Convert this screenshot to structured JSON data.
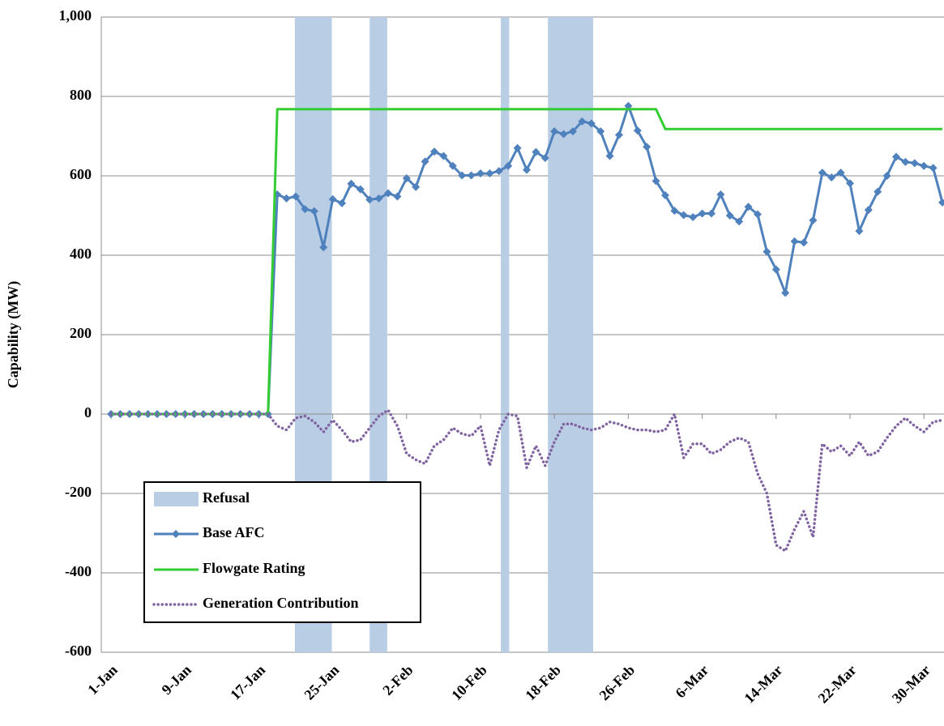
{
  "chart_data": {
    "type": "line",
    "ylabel": "Capability (MW)",
    "categories": [
      "1-Jan",
      null,
      null,
      null,
      null,
      null,
      null,
      null,
      "9-Jan",
      null,
      null,
      null,
      null,
      null,
      null,
      null,
      "17-Jan",
      null,
      null,
      null,
      null,
      null,
      null,
      null,
      "25-Jan",
      null,
      null,
      null,
      null,
      null,
      null,
      null,
      "2-Feb",
      null,
      null,
      null,
      null,
      null,
      null,
      null,
      "10-Feb",
      null,
      null,
      null,
      null,
      null,
      null,
      null,
      "18-Feb",
      null,
      null,
      null,
      null,
      null,
      null,
      null,
      "26-Feb",
      null,
      null,
      null,
      null,
      null,
      null,
      null,
      "6-Mar",
      null,
      null,
      null,
      null,
      null,
      null,
      null,
      "14-Mar",
      null,
      null,
      null,
      null,
      null,
      null,
      null,
      "22-Mar",
      null,
      null,
      null,
      null,
      null,
      null,
      null,
      "30-Mar",
      null,
      null
    ],
    "ylim": [
      -600,
      1000
    ],
    "yticks": [
      -600,
      -400,
      -200,
      0,
      200,
      400,
      600,
      800,
      {
        "value": 1000,
        "label": "1,000"
      }
    ],
    "grid": true,
    "legend": "lower-left",
    "bands": {
      "name": "Refusal",
      "color": "#b9cde5",
      "spans": [
        [
          19.9,
          23.9
        ],
        [
          28.0,
          29.9
        ],
        [
          42.2,
          43.1
        ],
        [
          47.3,
          52.2
        ]
      ]
    },
    "series": [
      {
        "name": "Base AFC",
        "color": "#4f81bd",
        "style": "marker",
        "values": [
          0,
          0,
          0,
          0,
          0,
          0,
          0,
          0,
          0,
          0,
          0,
          0,
          0,
          0,
          0,
          0,
          0,
          0,
          553,
          543,
          548,
          516,
          511,
          420,
          541,
          531,
          580,
          566,
          540,
          543,
          556,
          548,
          594,
          572,
          636,
          661,
          650,
          625,
          601,
          601,
          606,
          606,
          612,
          625,
          670,
          615,
          660,
          645,
          712,
          705,
          712,
          737,
          732,
          712,
          650,
          703,
          776,
          714,
          673,
          587,
          551,
          512,
          501,
          496,
          505,
          505,
          553,
          500,
          485,
          522,
          503,
          409,
          364,
          305,
          435,
          432,
          488,
          608,
          596,
          608,
          581,
          461,
          514,
          560,
          600,
          648,
          635,
          632,
          625,
          620,
          533
        ]
      },
      {
        "name": "Flowgate Rating",
        "color": "#33cc33",
        "style": "solid",
        "values": [
          0,
          0,
          0,
          0,
          0,
          0,
          0,
          0,
          0,
          0,
          0,
          0,
          0,
          0,
          0,
          0,
          0,
          0,
          768,
          768,
          768,
          768,
          768,
          768,
          768,
          768,
          768,
          768,
          768,
          768,
          768,
          768,
          768,
          768,
          768,
          768,
          768,
          768,
          768,
          768,
          768,
          768,
          768,
          768,
          768,
          768,
          768,
          768,
          768,
          768,
          768,
          768,
          768,
          768,
          768,
          768,
          768,
          768,
          768,
          768,
          718,
          718,
          718,
          718,
          718,
          718,
          718,
          718,
          718,
          718,
          718,
          718,
          718,
          718,
          718,
          718,
          718,
          718,
          718,
          718,
          718,
          718,
          718,
          718,
          718,
          718,
          718,
          718,
          718,
          718,
          718
        ]
      },
      {
        "name": "Generation Contribution",
        "color": "#8064a2",
        "style": "dotted",
        "values": [
          0,
          0,
          0,
          0,
          0,
          0,
          0,
          0,
          0,
          0,
          0,
          0,
          0,
          0,
          0,
          0,
          0,
          0,
          -30,
          -40,
          -10,
          -5,
          -20,
          -45,
          -15,
          -40,
          -70,
          -65,
          -35,
          -5,
          10,
          -30,
          -100,
          -115,
          -125,
          -80,
          -65,
          -35,
          -50,
          -55,
          -30,
          -130,
          -40,
          0,
          -5,
          -135,
          -80,
          -130,
          -70,
          -25,
          -25,
          -35,
          -40,
          -35,
          -20,
          -25,
          -35,
          -40,
          -40,
          -45,
          -40,
          0,
          -110,
          -75,
          -75,
          -100,
          -90,
          -70,
          -60,
          -70,
          -150,
          -200,
          -330,
          -345,
          -290,
          -245,
          -310,
          -75,
          -95,
          -80,
          -105,
          -70,
          -105,
          -95,
          -60,
          -30,
          -10,
          -30,
          -45,
          -20,
          -15
        ]
      }
    ]
  }
}
